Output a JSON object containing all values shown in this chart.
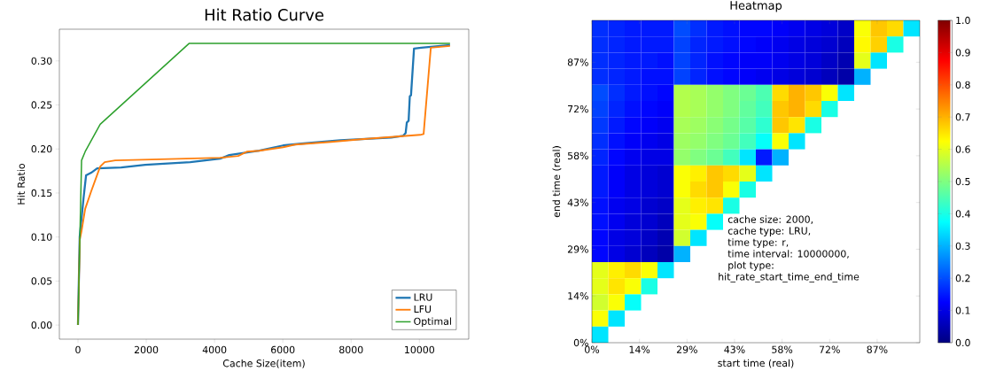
{
  "chart_data": [
    {
      "type": "line",
      "title": "Hit Ratio Curve",
      "xlabel": "Cache Size(item)",
      "ylabel": "Hit Ratio",
      "legend": "bottom right",
      "xlim": [
        -545,
        11445
      ],
      "ylim": [
        -0.016,
        0.336
      ],
      "xticks": [
        0,
        2000,
        4000,
        6000,
        8000,
        10000
      ],
      "yticks": [
        {
          "value": 0,
          "label": "0.00"
        },
        {
          "value": 0.05,
          "label": "0.05"
        },
        {
          "value": 0.1,
          "label": "0.10"
        },
        {
          "value": 0.15,
          "label": "0.15"
        },
        {
          "value": 0.2,
          "label": "0.20"
        },
        {
          "value": 0.25,
          "label": "0.25"
        },
        {
          "value": 0.3,
          "label": "0.30"
        }
      ],
      "series": [
        {
          "name": "LRU",
          "color": "#1f77b4",
          "x": [
            0,
            50,
            165,
            237,
            387,
            562,
            1265,
            1968,
            3286,
            4165,
            4429,
            5307,
            6010,
            6538,
            7680,
            9174,
            9525,
            9596,
            9631,
            9684,
            9719,
            9754,
            9842,
            10053,
            10896
          ],
          "values": [
            0,
            0.1,
            0.145,
            0.17,
            0.173,
            0.178,
            0.179,
            0.182,
            0.185,
            0.189,
            0.193,
            0.198,
            0.204,
            0.206,
            0.21,
            0.213,
            0.215,
            0.218,
            0.23,
            0.232,
            0.26,
            0.261,
            0.314,
            0.315,
            0.318
          ]
        },
        {
          "name": "LFU",
          "color": "#ff7f0e",
          "x": [
            0,
            53,
            105,
            211,
            387,
            650,
            782,
            1090,
            2144,
            4165,
            4692,
            4956,
            5307,
            6010,
            6362,
            7417,
            8295,
            10018,
            10123,
            10334,
            10896
          ],
          "values": [
            0,
            0.097,
            0.107,
            0.132,
            0.152,
            0.18,
            0.185,
            0.187,
            0.188,
            0.19,
            0.192,
            0.197,
            0.198,
            0.202,
            0.205,
            0.208,
            0.211,
            0.216,
            0.217,
            0.315,
            0.317
          ]
        },
        {
          "name": "Optimal",
          "color": "#2ca02c",
          "x": [
            0,
            105,
            211,
            650,
            3260,
            10896
          ],
          "values": [
            0,
            0.187,
            0.197,
            0.228,
            0.32,
            0.32
          ]
        }
      ]
    },
    {
      "type": "heatmap",
      "title": "Heatmap",
      "xlabel": "start time (real)",
      "ylabel": "end time (real)",
      "xlim": [
        0,
        100
      ],
      "ylim": [
        0,
        100
      ],
      "xticks": [
        {
          "value": 0,
          "label": "0%"
        },
        {
          "value": 14.5,
          "label": "14%"
        },
        {
          "value": 29,
          "label": "29%"
        },
        {
          "value": 43.5,
          "label": "43%"
        },
        {
          "value": 58,
          "label": "58%"
        },
        {
          "value": 72.5,
          "label": "72%"
        },
        {
          "value": 87,
          "label": "87%"
        }
      ],
      "yticks": [
        {
          "value": 0,
          "label": "0%"
        },
        {
          "value": 14.5,
          "label": "14%"
        },
        {
          "value": 29,
          "label": "29%"
        },
        {
          "value": 43.5,
          "label": "43%"
        },
        {
          "value": 58,
          "label": "58%"
        },
        {
          "value": 72.5,
          "label": "72%"
        },
        {
          "value": 87,
          "label": "87%"
        }
      ],
      "clim": [
        0,
        1
      ],
      "cticks": [
        {
          "value": 0,
          "label": "0.0"
        },
        {
          "value": 0.1,
          "label": "0.1"
        },
        {
          "value": 0.2,
          "label": "0.2"
        },
        {
          "value": 0.3,
          "label": "0.3"
        },
        {
          "value": 0.4,
          "label": "0.4"
        },
        {
          "value": 0.5,
          "label": "0.5"
        },
        {
          "value": 0.6,
          "label": "0.6"
        },
        {
          "value": 0.7,
          "label": "0.7"
        },
        {
          "value": 0.8,
          "label": "0.8"
        },
        {
          "value": 0.9,
          "label": "0.9"
        },
        {
          "value": 1,
          "label": "1.0"
        }
      ],
      "annotations": [
        "cache size: 2000,",
        "cache type: LRU,",
        "time type:  r,",
        "time interval: 10000000,",
        "plot type:",
        "hit_rate_start_time_end_time"
      ],
      "cells": [
        [
          0.17,
          0.16,
          0.15,
          0.15,
          0.15,
          0.2,
          0.17,
          0.15,
          0.14,
          0.13,
          0.13,
          0.12,
          0.11,
          0.1,
          0.09,
          0.07,
          0.62,
          0.68,
          0.66,
          0.35
        ],
        [
          0.17,
          0.16,
          0.15,
          0.15,
          0.15,
          0.19,
          0.16,
          0.15,
          0.14,
          0.13,
          0.12,
          0.11,
          0.1,
          0.09,
          0.08,
          0.06,
          0.63,
          0.67,
          0.4,
          null
        ],
        [
          0.17,
          0.16,
          0.15,
          0.15,
          0.14,
          0.19,
          0.16,
          0.14,
          0.13,
          0.12,
          0.12,
          0.11,
          0.1,
          0.09,
          0.07,
          0.05,
          0.6,
          0.35,
          null,
          null
        ],
        [
          0.17,
          0.16,
          0.15,
          0.14,
          0.14,
          0.19,
          0.16,
          0.14,
          0.13,
          0.12,
          0.11,
          0.1,
          0.09,
          0.08,
          0.06,
          0.04,
          0.3,
          null,
          null,
          null
        ],
        [
          0.2,
          0.17,
          0.15,
          0.14,
          0.13,
          0.55,
          0.54,
          0.52,
          0.5,
          0.48,
          0.45,
          0.66,
          0.7,
          0.68,
          0.62,
          0.35,
          null,
          null,
          null,
          null
        ],
        [
          0.19,
          0.16,
          0.14,
          0.13,
          0.12,
          0.55,
          0.54,
          0.52,
          0.5,
          0.47,
          0.44,
          0.68,
          0.7,
          0.66,
          0.4,
          null,
          null,
          null,
          null,
          null
        ],
        [
          0.18,
          0.15,
          0.13,
          0.12,
          0.11,
          0.54,
          0.53,
          0.51,
          0.49,
          0.46,
          0.42,
          0.68,
          0.65,
          0.4,
          null,
          null,
          null,
          null,
          null,
          null
        ],
        [
          0.17,
          0.14,
          0.12,
          0.11,
          0.1,
          0.53,
          0.52,
          0.5,
          0.48,
          0.44,
          0.38,
          0.62,
          0.35,
          null,
          null,
          null,
          null,
          null,
          null,
          null
        ],
        [
          0.16,
          0.13,
          0.11,
          0.1,
          0.1,
          0.52,
          0.5,
          0.48,
          0.44,
          0.35,
          0.15,
          0.3,
          null,
          null,
          null,
          null,
          null,
          null,
          null,
          null
        ],
        [
          0.15,
          0.12,
          0.1,
          0.09,
          0.08,
          0.62,
          0.64,
          0.68,
          0.66,
          0.6,
          0.35,
          null,
          null,
          null,
          null,
          null,
          null,
          null,
          null,
          null
        ],
        [
          0.15,
          0.12,
          0.1,
          0.09,
          0.08,
          0.62,
          0.66,
          0.68,
          0.62,
          0.4,
          null,
          null,
          null,
          null,
          null,
          null,
          null,
          null,
          null,
          null
        ],
        [
          0.14,
          0.11,
          0.1,
          0.08,
          0.07,
          0.6,
          0.64,
          0.65,
          0.4,
          null,
          null,
          null,
          null,
          null,
          null,
          null,
          null,
          null,
          null,
          null
        ],
        [
          0.14,
          0.11,
          0.09,
          0.08,
          0.06,
          0.6,
          0.62,
          0.38,
          null,
          null,
          null,
          null,
          null,
          null,
          null,
          null,
          null,
          null,
          null,
          null
        ],
        [
          0.13,
          0.1,
          0.09,
          0.07,
          0.05,
          0.58,
          0.35,
          null,
          null,
          null,
          null,
          null,
          null,
          null,
          null,
          null,
          null,
          null,
          null,
          null
        ],
        [
          0.13,
          0.1,
          0.08,
          0.06,
          0.04,
          0.3,
          null,
          null,
          null,
          null,
          null,
          null,
          null,
          null,
          null,
          null,
          null,
          null,
          null,
          null
        ],
        [
          0.6,
          0.64,
          0.66,
          0.62,
          0.35,
          null,
          null,
          null,
          null,
          null,
          null,
          null,
          null,
          null,
          null,
          null,
          null,
          null,
          null,
          null
        ],
        [
          0.6,
          0.65,
          0.62,
          0.4,
          null,
          null,
          null,
          null,
          null,
          null,
          null,
          null,
          null,
          null,
          null,
          null,
          null,
          null,
          null,
          null
        ],
        [
          0.58,
          0.62,
          0.38,
          null,
          null,
          null,
          null,
          null,
          null,
          null,
          null,
          null,
          null,
          null,
          null,
          null,
          null,
          null,
          null,
          null
        ],
        [
          0.62,
          0.35,
          null,
          null,
          null,
          null,
          null,
          null,
          null,
          null,
          null,
          null,
          null,
          null,
          null,
          null,
          null,
          null,
          null,
          null
        ],
        [
          0.35,
          null,
          null,
          null,
          null,
          null,
          null,
          null,
          null,
          null,
          null,
          null,
          null,
          null,
          null,
          null,
          null,
          null,
          null,
          null
        ]
      ]
    }
  ]
}
